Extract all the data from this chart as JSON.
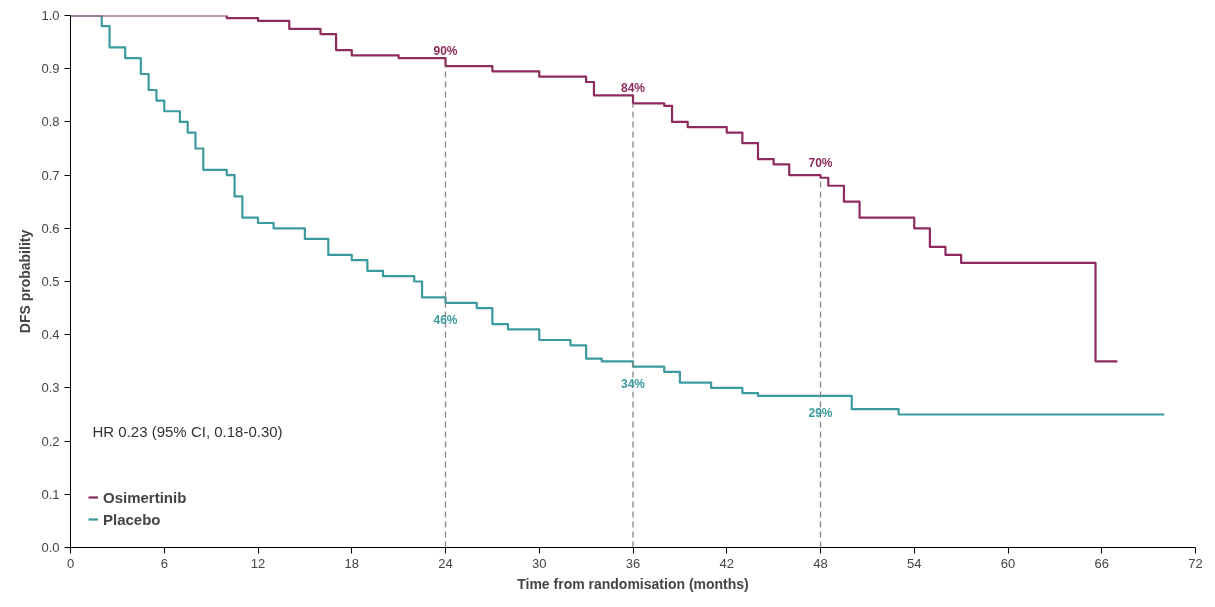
{
  "chart_data": {
    "type": "step",
    "xlabel": "Time from randomisation (months)",
    "ylabel": "DFS probability",
    "xlim": [
      0,
      72
    ],
    "ylim": [
      0,
      1.0
    ],
    "xticks": [
      0,
      6,
      12,
      18,
      24,
      30,
      36,
      42,
      48,
      54,
      60,
      66,
      72
    ],
    "yticks": [
      {
        "value": 0,
        "label": "0.0"
      },
      {
        "value": 0.1,
        "label": "0.1"
      },
      {
        "value": 0.2,
        "label": "0.2"
      },
      {
        "value": 0.3,
        "label": "0.3"
      },
      {
        "value": 0.4,
        "label": "0.4"
      },
      {
        "value": 0.5,
        "label": "0.5"
      },
      {
        "value": 0.6,
        "label": "0.6"
      },
      {
        "value": 0.7,
        "label": "0.7"
      },
      {
        "value": 0.8,
        "label": "0.8"
      },
      {
        "value": 0.9,
        "label": "0.9"
      },
      {
        "value": 1.0,
        "label": "1.0"
      }
    ],
    "grid": false,
    "legend": "bottom left",
    "line_style": "solid",
    "series": [
      {
        "name": "Osimertinib",
        "color": "#8e2b5e",
        "x": [
          0,
          10,
          12,
          14,
          16,
          17,
          18,
          21,
          24,
          27,
          30,
          33,
          33.5,
          36,
          38,
          38.5,
          39.5,
          42,
          43,
          44,
          45,
          46,
          48,
          48.5,
          49.5,
          50.5,
          53,
          54,
          55,
          56,
          57,
          65.6,
          67
        ],
        "values": [
          1.0,
          0.995,
          0.99,
          0.975,
          0.965,
          0.935,
          0.925,
          0.92,
          0.905,
          0.895,
          0.885,
          0.875,
          0.85,
          0.835,
          0.83,
          0.8,
          0.79,
          0.78,
          0.76,
          0.73,
          0.72,
          0.7,
          0.695,
          0.68,
          0.65,
          0.62,
          0.62,
          0.6,
          0.565,
          0.55,
          0.535,
          0.35,
          0.35
        ]
      },
      {
        "name": "Placebo",
        "color": "#3a9a9e",
        "x": [
          0,
          2,
          2.5,
          3.5,
          4.5,
          5,
          5.5,
          6,
          7,
          7.5,
          8,
          8.5,
          10,
          10.5,
          11,
          12,
          13,
          15,
          16.5,
          18,
          19,
          20,
          22,
          22.5,
          24,
          26,
          27,
          28,
          30,
          32,
          33,
          34,
          36,
          38,
          39,
          41,
          43,
          44,
          50,
          53,
          70
        ],
        "values": [
          1.0,
          0.98,
          0.94,
          0.92,
          0.89,
          0.86,
          0.84,
          0.82,
          0.8,
          0.78,
          0.75,
          0.71,
          0.7,
          0.66,
          0.62,
          0.61,
          0.6,
          0.58,
          0.55,
          0.54,
          0.52,
          0.51,
          0.5,
          0.47,
          0.46,
          0.45,
          0.42,
          0.41,
          0.39,
          0.38,
          0.355,
          0.35,
          0.34,
          0.33,
          0.31,
          0.3,
          0.29,
          0.285,
          0.26,
          0.25,
          0.25
        ]
      }
    ],
    "ref_lines": [
      {
        "axis": "x",
        "value": 24,
        "line_style": "dashed",
        "color": "#888888"
      },
      {
        "axis": "x",
        "value": 36,
        "line_style": "dashed",
        "color": "#888888"
      },
      {
        "axis": "x",
        "value": 48,
        "line_style": "dashed",
        "color": "#888888"
      }
    ],
    "annotations": [
      {
        "text": "90%",
        "x": 24,
        "y": 0.905
      },
      {
        "text": "84%",
        "x": 36,
        "y": 0.835
      },
      {
        "text": "70%",
        "x": 48,
        "y": 0.695
      },
      {
        "text": "46%",
        "x": 24,
        "y": 0.46
      },
      {
        "text": "34%",
        "x": 36,
        "y": 0.34
      },
      {
        "text": "29%",
        "x": 48,
        "y": 0.285
      },
      "HR 0.23 (95% CI, 0.18-0.30)"
    ]
  }
}
